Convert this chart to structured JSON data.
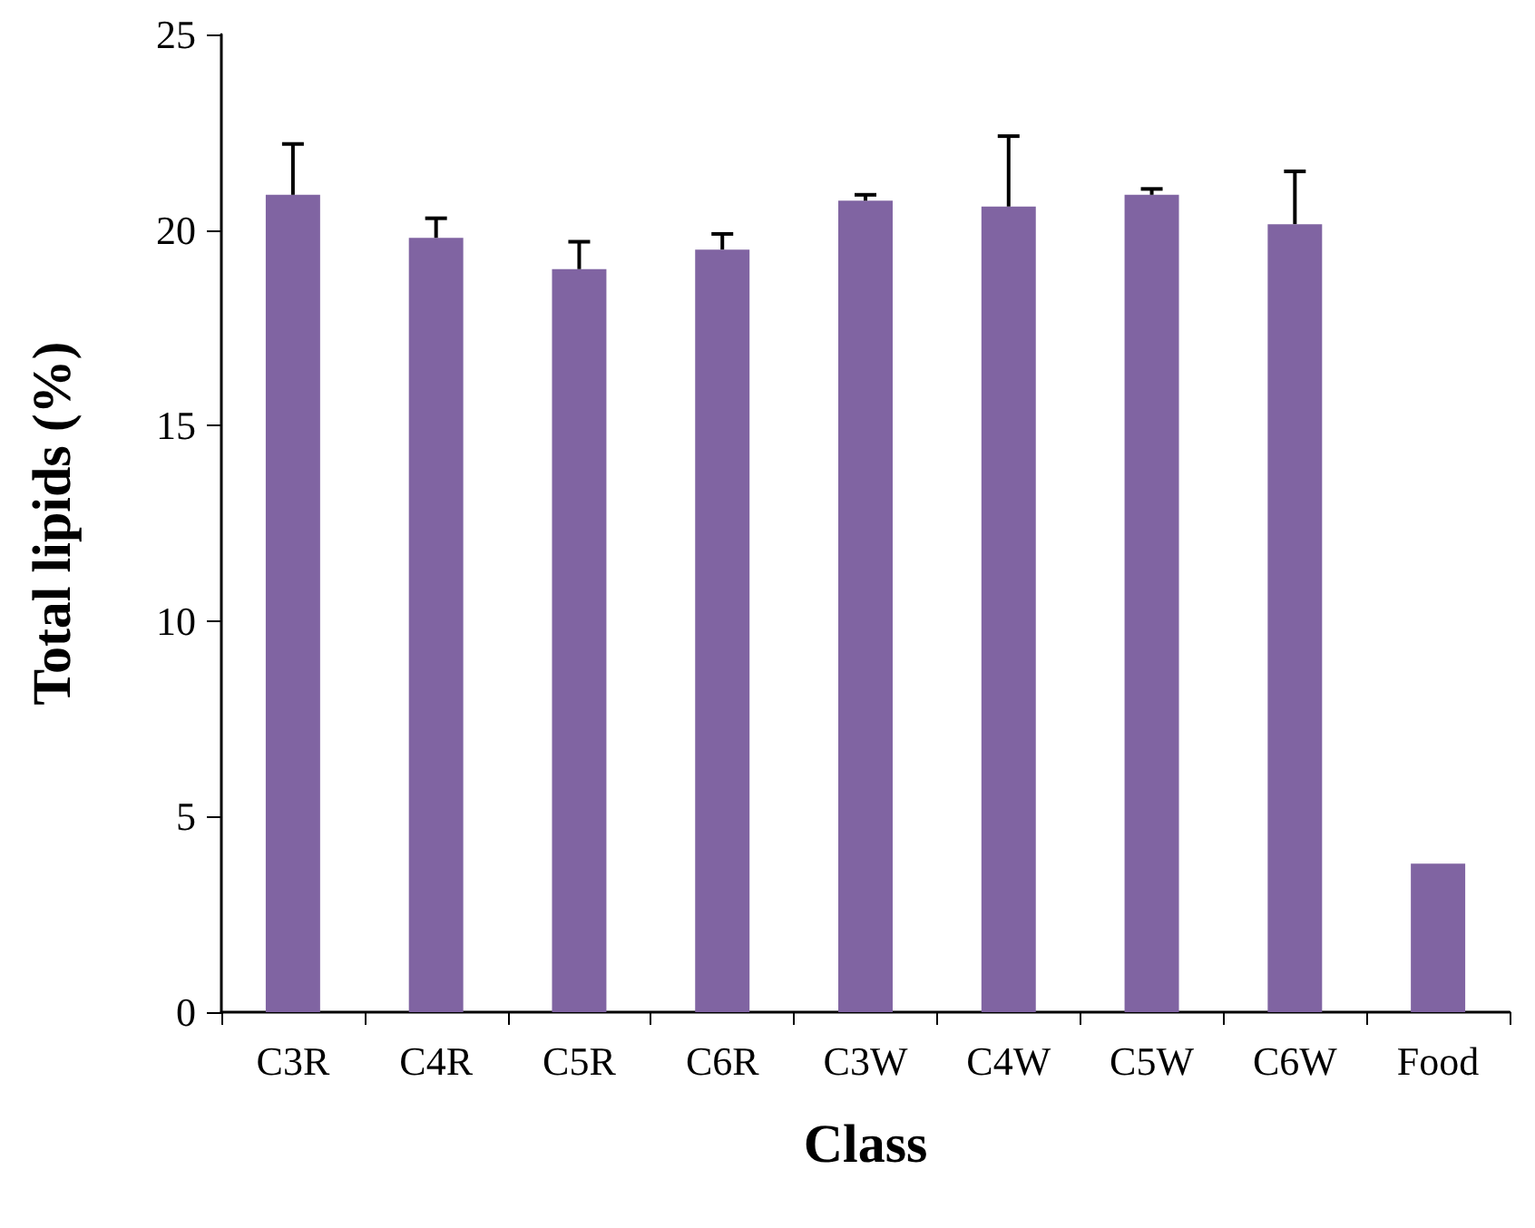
{
  "chart_data": {
    "type": "bar",
    "xlabel": "Class",
    "ylabel": "Total lipids (%)",
    "categories": [
      "C3R",
      "C4R",
      "C5R",
      "C6R",
      "C3W",
      "C4W",
      "C5W",
      "C6W",
      "Food"
    ],
    "values": [
      20.9,
      19.8,
      19.0,
      19.5,
      20.75,
      20.6,
      20.9,
      20.15,
      3.8
    ],
    "errors": [
      [
        20.9,
        22.2
      ],
      [
        19.8,
        20.3
      ],
      [
        19.0,
        19.7
      ],
      [
        19.5,
        19.9
      ],
      [
        20.75,
        20.9
      ],
      [
        20.6,
        22.4
      ],
      [
        20.9,
        21.05
      ],
      [
        20.15,
        21.5
      ],
      null
    ],
    "color": "#8064a2",
    "ylim": [
      0,
      25
    ],
    "yticks": [
      0,
      5,
      10,
      15,
      20,
      25
    ]
  }
}
